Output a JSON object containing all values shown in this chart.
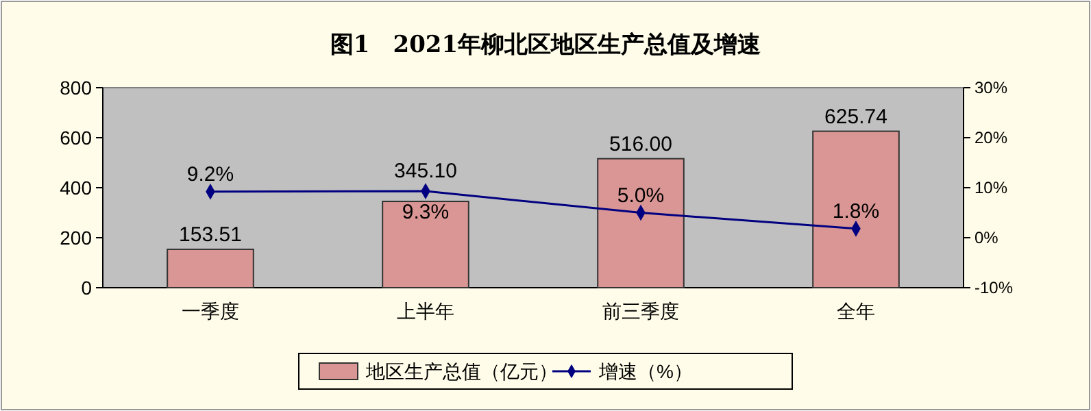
{
  "chart_data": {
    "type": "bar",
    "title": "图1　2021年柳北区地区生产总值及增速",
    "categories": [
      "一季度",
      "上半年",
      "前三季度",
      "全年"
    ],
    "series": [
      {
        "name": "地区生产总值（亿元）",
        "color": "#d99694",
        "values": [
          153.51,
          345.1,
          516,
          625.74
        ],
        "value_labels": [
          "153.51",
          "345.10",
          "516.00",
          "625.74"
        ]
      },
      {
        "name": "增速（%）",
        "type": "line",
        "axis": "y2",
        "color": "#000080",
        "values": [
          9.2,
          9.3,
          5.0,
          1.8
        ],
        "value_labels": [
          "9.2%",
          "9.3%",
          "5.0%",
          "1.8%"
        ],
        "marker": "diamond"
      }
    ],
    "ylim": [
      0,
      800
    ],
    "yticks": [
      0,
      200,
      400,
      600,
      800
    ],
    "y2lim": [
      -10,
      30
    ],
    "y2ticks": [
      {
        "value": -10,
        "label": "-10%"
      },
      {
        "value": 0,
        "label": "0%"
      },
      {
        "value": 10,
        "label": "10%"
      },
      {
        "value": 20,
        "label": "20%"
      },
      {
        "value": 30,
        "label": "30%"
      }
    ],
    "legend": "bottom"
  }
}
